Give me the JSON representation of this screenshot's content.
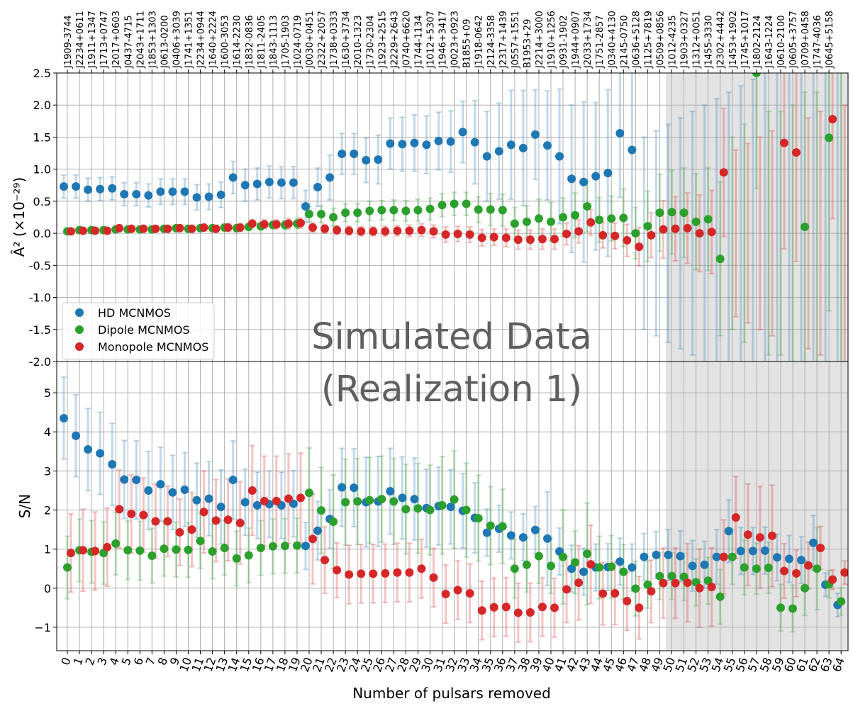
{
  "chart_data": {
    "type": "scatter",
    "x_label": "Number of pulsars removed",
    "x_ticks": [
      "0",
      "1",
      "2",
      "3",
      "4",
      "5",
      "6",
      "7",
      "8",
      "9",
      "10",
      "11",
      "12",
      "13",
      "14",
      "15",
      "16",
      "17",
      "18",
      "19",
      "20",
      "21",
      "22",
      "23",
      "24",
      "25",
      "26",
      "27",
      "28",
      "29",
      "30",
      "31",
      "32",
      "33",
      "34",
      "35",
      "36",
      "37",
      "38",
      "39",
      "40",
      "41",
      "42",
      "43",
      "44",
      "45",
      "46",
      "47",
      "48",
      "49",
      "50",
      "51",
      "52",
      "53",
      "54",
      "55",
      "56",
      "57",
      "58",
      "59",
      "60",
      "61",
      "62",
      "63",
      "64"
    ],
    "pulsar_labels": [
      "J1909-3744",
      "J2234+0611",
      "J1911+1347",
      "J1713+0747",
      "J2017+0603",
      "J0437-4715",
      "J2043+1711",
      "J1853+1303",
      "J0613-0200",
      "J0406+3039",
      "J1741+1351",
      "J2234+0944",
      "J1640+2224",
      "J1600-3053",
      "J1614-2230",
      "J1832-0836",
      "J1811-2405",
      "J1843-1113",
      "J1705-1903",
      "J1024-0719",
      "J0030+0451",
      "J2322+2057",
      "J1738+0333",
      "J1630+3734",
      "J2010-1323",
      "J1730-2304",
      "J1923+2515",
      "J2229+2643",
      "J0740+6620",
      "J1744-1134",
      "J1012+5307",
      "J1946+3417",
      "J0023+0923",
      "B1855+09",
      "J1918-0642",
      "J2124-3358",
      "J2317+1439",
      "J0557+1551",
      "B1953+29",
      "J2214+3000",
      "J1910+1256",
      "J0931-1902",
      "J1944+0907",
      "J2033+1734",
      "J1751-2857",
      "J0340+4130",
      "J2145-0750",
      "J0636+5128",
      "J1125+7819",
      "J0509+0856",
      "J1012-4235",
      "J1903+0327",
      "J1312+0051",
      "J1455-3330",
      "J2302+4442",
      "J1453+1902",
      "J1745+1017",
      "J1802-2124",
      "J1643-1224",
      "J0610-2100",
      "J0605+3757",
      "J0709+0458",
      "J1747-4036",
      "J0645+5158"
    ],
    "shaded_region_start": 50,
    "overlay_text": [
      "Simulated Data",
      "(Realization 1)"
    ],
    "panels": [
      {
        "ylabel": "Â² (×10⁻²⁹)",
        "ylim": [
          -2.0,
          2.5
        ],
        "yticks": [
          "-2.0",
          "-1.5",
          "-1.0",
          "-0.5",
          "0.0",
          "0.5",
          "1.0",
          "1.5",
          "2.0",
          "2.5"
        ],
        "ytick_values": [
          -2.0,
          -1.5,
          -1.0,
          -0.5,
          0.0,
          0.5,
          1.0,
          1.5,
          2.0,
          2.5
        ],
        "series": [
          {
            "name": "HD MCNMOS",
            "color": "#1f77b4",
            "values": [
              0.73,
              0.73,
              0.68,
              0.69,
              0.7,
              0.61,
              0.61,
              0.59,
              0.65,
              0.65,
              0.65,
              0.56,
              0.57,
              0.6,
              0.87,
              0.75,
              0.77,
              0.8,
              0.79,
              0.79,
              0.42,
              0.72,
              0.87,
              1.24,
              1.24,
              1.14,
              1.15,
              1.4,
              1.39,
              1.41,
              1.38,
              1.44,
              1.43,
              1.58,
              1.42,
              1.2,
              1.28,
              1.38,
              1.33,
              1.54,
              1.37,
              1.2,
              0.85,
              0.8,
              0.89,
              0.94,
              1.56,
              1.3,
              null,
              null,
              null,
              null,
              null,
              null,
              null,
              null,
              null,
              null,
              null,
              null,
              null,
              null,
              null,
              null,
              null
            ],
            "err": [
              0.18,
              0.18,
              0.18,
              0.18,
              0.18,
              0.18,
              0.18,
              0.18,
              0.2,
              0.2,
              0.2,
              0.2,
              0.2,
              0.2,
              0.25,
              0.25,
              0.25,
              0.25,
              0.25,
              0.25,
              0.25,
              0.3,
              0.35,
              0.32,
              0.32,
              0.35,
              0.38,
              0.4,
              0.42,
              0.44,
              0.45,
              0.45,
              0.48,
              0.48,
              0.65,
              0.7,
              0.75,
              0.85,
              0.9,
              0.7,
              0.85,
              1.05,
              1.15,
              1.25,
              1.15,
              1.3,
              1.0,
              1.3,
              1.5,
              1.6,
              1.7,
              1.8,
              1.9,
              2.0,
              2.1,
              2.2,
              2.3,
              2.4,
              2.5,
              2.6,
              2.7,
              2.8,
              2.9,
              3.0,
              3.1
            ]
          },
          {
            "name": "Dipole MCNMOS",
            "color": "#2ca02c",
            "values": [
              0.03,
              0.05,
              0.05,
              0.05,
              0.06,
              0.06,
              0.06,
              0.06,
              0.07,
              0.08,
              0.07,
              0.08,
              0.08,
              0.09,
              0.08,
              0.1,
              0.11,
              0.13,
              0.13,
              0.15,
              0.3,
              0.3,
              0.25,
              0.32,
              0.32,
              0.35,
              0.36,
              0.36,
              0.35,
              0.36,
              0.38,
              0.44,
              0.46,
              0.46,
              0.37,
              0.37,
              0.36,
              0.15,
              0.18,
              0.23,
              0.18,
              0.25,
              0.28,
              0.42,
              0.21,
              0.23,
              0.24,
              0.0,
              0.11,
              0.32,
              0.33,
              0.32,
              0.18,
              0.22,
              -0.4,
              null,
              null,
              2.5,
              null,
              null,
              null,
              0.1,
              null,
              1.49,
              null
            ],
            "err": [
              0.03,
              0.03,
              0.03,
              0.03,
              0.03,
              0.03,
              0.03,
              0.04,
              0.04,
              0.04,
              0.04,
              0.05,
              0.05,
              0.05,
              0.05,
              0.06,
              0.06,
              0.06,
              0.07,
              0.08,
              0.12,
              0.13,
              0.14,
              0.14,
              0.14,
              0.15,
              0.15,
              0.16,
              0.16,
              0.17,
              0.17,
              0.18,
              0.18,
              0.18,
              0.2,
              0.25,
              0.25,
              0.25,
              0.25,
              0.3,
              0.3,
              0.3,
              0.35,
              0.4,
              0.35,
              0.35,
              0.45,
              0.4,
              0.55,
              0.6,
              0.65,
              0.7,
              0.75,
              0.8,
              1.2,
              1.5,
              1.7,
              1.8,
              1.9,
              1.9,
              2.0,
              2.1,
              2.2,
              2.7,
              3.0
            ]
          },
          {
            "name": "Monopole MCNMOS",
            "color": "#d62728",
            "values": [
              0.03,
              0.04,
              0.04,
              0.04,
              0.08,
              0.07,
              0.07,
              0.07,
              0.07,
              0.08,
              0.07,
              0.09,
              0.07,
              0.09,
              0.09,
              0.15,
              0.14,
              0.14,
              0.15,
              0.16,
              0.09,
              0.07,
              0.05,
              0.04,
              0.03,
              0.03,
              0.03,
              0.04,
              0.04,
              0.05,
              0.03,
              -0.02,
              -0.01,
              -0.02,
              -0.07,
              -0.06,
              -0.07,
              -0.1,
              -0.1,
              -0.09,
              -0.09,
              -0.01,
              0.03,
              0.17,
              -0.03,
              -0.04,
              -0.11,
              -0.21,
              -0.03,
              0.06,
              0.07,
              0.08,
              0.0,
              0.02,
              0.95,
              null,
              null,
              null,
              null,
              1.41,
              1.26,
              null,
              null,
              1.78,
              null
            ],
            "err": [
              0.04,
              0.04,
              0.04,
              0.04,
              0.04,
              0.04,
              0.04,
              0.04,
              0.05,
              0.05,
              0.05,
              0.05,
              0.05,
              0.06,
              0.06,
              0.06,
              0.07,
              0.07,
              0.08,
              0.08,
              0.07,
              0.07,
              0.07,
              0.07,
              0.07,
              0.07,
              0.08,
              0.08,
              0.09,
              0.1,
              0.1,
              0.12,
              0.12,
              0.12,
              0.13,
              0.13,
              0.14,
              0.15,
              0.15,
              0.16,
              0.16,
              0.17,
              0.18,
              0.2,
              0.2,
              0.2,
              0.25,
              0.3,
              0.35,
              0.45,
              0.5,
              0.55,
              0.6,
              0.65,
              1.0,
              1.3,
              1.4,
              1.5,
              1.6,
              1.65,
              1.7,
              1.8,
              1.9,
              1.55,
              2.0
            ]
          }
        ]
      },
      {
        "ylabel": "S/N",
        "ylim": [
          -1.6,
          5.8
        ],
        "yticks": [
          "−1",
          "0",
          "1",
          "2",
          "3",
          "4",
          "5"
        ],
        "ytick_values": [
          -1,
          0,
          1,
          2,
          3,
          4,
          5
        ],
        "series": [
          {
            "name": "HD MCNMOS",
            "color": "#1f77b4",
            "values": [
              4.35,
              3.9,
              3.55,
              3.45,
              3.17,
              2.78,
              2.77,
              2.5,
              2.66,
              2.45,
              2.52,
              2.25,
              2.29,
              2.08,
              2.77,
              2.2,
              2.12,
              2.15,
              2.12,
              2.16,
              1.08,
              1.47,
              1.77,
              2.58,
              2.57,
              2.2,
              2.22,
              2.48,
              2.31,
              2.28,
              2.05,
              2.1,
              2.08,
              1.98,
              1.8,
              1.42,
              1.52,
              1.35,
              1.3,
              1.49,
              1.27,
              0.94,
              0.5,
              0.42,
              0.53,
              0.54,
              0.68,
              0.53,
              0.8,
              0.85,
              0.85,
              0.82,
              0.57,
              0.6,
              0.8,
              1.46,
              0.95,
              0.95,
              0.96,
              0.79,
              0.75,
              0.72,
              1.16,
              0.09,
              -0.43
            ],
            "err": [
              1.05,
              1.05,
              1.05,
              1.05,
              1.05,
              1.0,
              1.0,
              1.0,
              0.95,
              0.95,
              0.95,
              0.95,
              0.95,
              0.95,
              1.0,
              0.85,
              0.85,
              0.85,
              0.85,
              0.85,
              0.6,
              0.75,
              0.75,
              1.0,
              1.0,
              1.15,
              1.15,
              1.1,
              1.05,
              1.05,
              1.0,
              1.0,
              0.95,
              0.95,
              0.9,
              0.6,
              0.6,
              0.6,
              0.6,
              0.6,
              1.2,
              0.6,
              0.6,
              0.6,
              0.6,
              0.6,
              0.6,
              0.6,
              0.6,
              0.6,
              0.65,
              0.65,
              0.65,
              0.6,
              0.7,
              0.8,
              0.6,
              0.6,
              0.6,
              0.6,
              0.6,
              0.6,
              0.7,
              0.3,
              0.3
            ]
          },
          {
            "name": "Dipole MCNMOS",
            "color": "#2ca02c",
            "values": [
              0.53,
              0.97,
              0.93,
              0.9,
              1.14,
              0.97,
              0.96,
              0.83,
              1.01,
              0.99,
              0.98,
              1.21,
              0.94,
              1.03,
              0.76,
              0.84,
              1.03,
              1.07,
              1.08,
              1.09,
              2.44,
              1.99,
              1.7,
              2.2,
              2.22,
              2.25,
              2.28,
              2.22,
              2.02,
              2.04,
              2.0,
              2.12,
              2.27,
              2.0,
              1.79,
              1.6,
              1.58,
              0.5,
              0.6,
              0.82,
              0.57,
              0.8,
              0.66,
              0.88,
              0.53,
              0.55,
              0.42,
              -0.01,
              0.09,
              0.31,
              0.31,
              0.29,
              0.15,
              0.19,
              -0.22,
              0.8,
              0.53,
              0.5,
              0.52,
              -0.5,
              -0.52,
              0.0,
              0.5,
              0.1,
              -0.34
            ],
            "err": [
              0.8,
              0.8,
              0.8,
              0.8,
              0.8,
              0.75,
              0.75,
              0.7,
              0.7,
              0.7,
              0.7,
              0.7,
              0.7,
              0.7,
              0.7,
              0.7,
              0.7,
              0.7,
              0.7,
              0.7,
              1.15,
              1.1,
              1.2,
              1.1,
              1.1,
              1.1,
              1.1,
              1.1,
              1.15,
              1.15,
              1.15,
              1.25,
              1.25,
              1.2,
              1.1,
              1.0,
              0.95,
              0.75,
              0.7,
              0.7,
              0.7,
              1.2,
              0.8,
              1.3,
              0.8,
              0.8,
              0.7,
              0.7,
              0.6,
              0.6,
              0.6,
              0.6,
              0.6,
              0.6,
              0.7,
              0.7,
              0.7,
              0.65,
              0.65,
              0.6,
              0.6,
              0.7,
              1.05,
              0.35,
              0.35
            ]
          },
          {
            "name": "Monopole MCNMOS",
            "color": "#d62728",
            "values": [
              0.9,
              0.97,
              0.95,
              1.05,
              2.02,
              1.9,
              1.87,
              1.71,
              1.71,
              1.43,
              1.5,
              1.95,
              1.73,
              1.75,
              1.67,
              2.5,
              2.23,
              2.23,
              2.29,
              2.31,
              1.26,
              0.72,
              0.46,
              0.35,
              0.37,
              0.37,
              0.38,
              0.4,
              0.4,
              0.5,
              0.27,
              -0.15,
              -0.05,
              -0.13,
              -0.57,
              -0.49,
              -0.48,
              -0.63,
              -0.62,
              -0.48,
              -0.5,
              -0.03,
              0.14,
              0.61,
              -0.14,
              -0.13,
              -0.33,
              -0.5,
              -0.08,
              0.13,
              0.13,
              0.14,
              0.0,
              0.03,
              0.8,
              1.81,
              1.37,
              1.3,
              1.34,
              0.44,
              0.38,
              0.58,
              1.03,
              0.22,
              0.4
            ],
            "err": [
              1.0,
              1.05,
              1.0,
              1.0,
              1.0,
              1.0,
              0.95,
              0.95,
              0.9,
              0.85,
              0.95,
              1.05,
              1.05,
              1.05,
              1.05,
              1.15,
              1.15,
              1.15,
              1.15,
              1.15,
              1.15,
              0.85,
              0.7,
              0.75,
              0.75,
              0.75,
              0.75,
              0.75,
              0.75,
              0.75,
              0.75,
              0.75,
              0.75,
              0.75,
              0.75,
              0.75,
              0.75,
              0.75,
              0.75,
              0.75,
              0.75,
              0.85,
              0.95,
              1.0,
              0.8,
              0.8,
              0.75,
              0.8,
              0.8,
              0.9,
              0.9,
              1.0,
              1.0,
              1.0,
              0.95,
              1.05,
              1.3,
              1.3,
              1.3,
              0.7,
              0.6,
              0.6,
              0.55,
              0.25,
              0.3
            ]
          }
        ]
      }
    ],
    "legend": {
      "placement": "lower-left of top panel",
      "entries": [
        "HD MCNMOS",
        "Dipole MCNMOS",
        "Monopole MCNMOS"
      ]
    }
  }
}
